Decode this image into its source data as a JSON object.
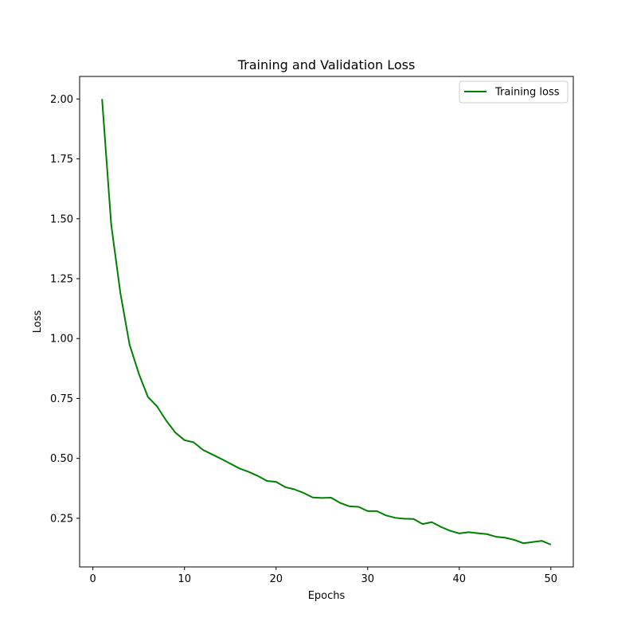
{
  "chart_data": {
    "type": "line",
    "title": "Training and Validation Loss",
    "xlabel": "Epochs",
    "ylabel": "Loss",
    "xlim": [
      -1.45,
      52.45
    ],
    "ylim": [
      0.047,
      2.094
    ],
    "xticks": [
      0,
      10,
      20,
      30,
      40,
      50
    ],
    "xtick_labels": [
      "0",
      "10",
      "20",
      "30",
      "40",
      "50"
    ],
    "yticks": [
      0.25,
      0.5,
      0.75,
      1.0,
      1.25,
      1.5,
      1.75,
      2.0
    ],
    "ytick_labels": [
      "0.25",
      "0.50",
      "0.75",
      "1.00",
      "1.25",
      "1.50",
      "1.75",
      "2.00"
    ],
    "grid": false,
    "legend_position": "top-right",
    "series": [
      {
        "name": "Training loss",
        "color": "#008000",
        "x": [
          1,
          2,
          3,
          4,
          5,
          6,
          7,
          8,
          9,
          10,
          11,
          12,
          13,
          14,
          15,
          16,
          17,
          18,
          19,
          20,
          21,
          22,
          23,
          24,
          25,
          26,
          27,
          28,
          29,
          30,
          31,
          32,
          33,
          34,
          35,
          36,
          37,
          38,
          39,
          40,
          41,
          42,
          43,
          44,
          45,
          46,
          47,
          48,
          49,
          50
        ],
        "y": [
          2.0,
          1.475,
          1.19,
          0.975,
          0.855,
          0.757,
          0.717,
          0.658,
          0.608,
          0.576,
          0.567,
          0.536,
          0.517,
          0.498,
          0.478,
          0.458,
          0.444,
          0.427,
          0.406,
          0.402,
          0.38,
          0.371,
          0.356,
          0.337,
          0.335,
          0.336,
          0.314,
          0.3,
          0.298,
          0.28,
          0.28,
          0.262,
          0.252,
          0.248,
          0.247,
          0.226,
          0.234,
          0.214,
          0.198,
          0.187,
          0.192,
          0.188,
          0.184,
          0.173,
          0.169,
          0.16,
          0.146,
          0.151,
          0.156,
          0.14
        ]
      }
    ]
  }
}
